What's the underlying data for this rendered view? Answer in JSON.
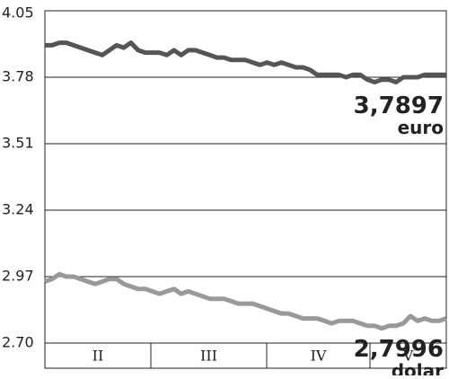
{
  "chart_data": {
    "type": "line",
    "x_labels": [
      "II",
      "III",
      "IV",
      "V"
    ],
    "ylim": [
      2.7,
      4.05
    ],
    "yticks": [
      {
        "value": 2.7,
        "label": "2.70"
      },
      2.97,
      3.24,
      3.51,
      3.78,
      4.05
    ],
    "grid": true,
    "series": [
      {
        "name": "euro",
        "color": "#555555",
        "last_label": "3,7897",
        "last_value": 3.7897,
        "values": [
          3.91,
          3.91,
          3.92,
          3.92,
          3.91,
          3.9,
          3.89,
          3.88,
          3.87,
          3.89,
          3.91,
          3.9,
          3.92,
          3.89,
          3.88,
          3.88,
          3.88,
          3.87,
          3.89,
          3.87,
          3.89,
          3.89,
          3.88,
          3.87,
          3.86,
          3.86,
          3.85,
          3.85,
          3.85,
          3.84,
          3.83,
          3.84,
          3.83,
          3.84,
          3.83,
          3.82,
          3.82,
          3.81,
          3.79,
          3.79,
          3.79,
          3.79,
          3.78,
          3.79,
          3.79,
          3.77,
          3.76,
          3.77,
          3.77,
          3.76,
          3.78,
          3.78,
          3.78,
          3.79,
          3.79,
          3.79,
          3.79
        ]
      },
      {
        "name": "dolar",
        "color": "#999999",
        "last_label": "2,7996",
        "last_value": 2.7996,
        "values": [
          2.95,
          2.96,
          2.98,
          2.97,
          2.97,
          2.96,
          2.95,
          2.94,
          2.95,
          2.96,
          2.96,
          2.94,
          2.93,
          2.92,
          2.92,
          2.91,
          2.9,
          2.91,
          2.92,
          2.9,
          2.91,
          2.9,
          2.89,
          2.88,
          2.88,
          2.88,
          2.87,
          2.86,
          2.86,
          2.86,
          2.85,
          2.84,
          2.83,
          2.82,
          2.82,
          2.81,
          2.8,
          2.8,
          2.8,
          2.79,
          2.78,
          2.79,
          2.79,
          2.79,
          2.78,
          2.77,
          2.77,
          2.76,
          2.77,
          2.77,
          2.78,
          2.81,
          2.79,
          2.8,
          2.79,
          2.79,
          2.8
        ]
      }
    ]
  }
}
